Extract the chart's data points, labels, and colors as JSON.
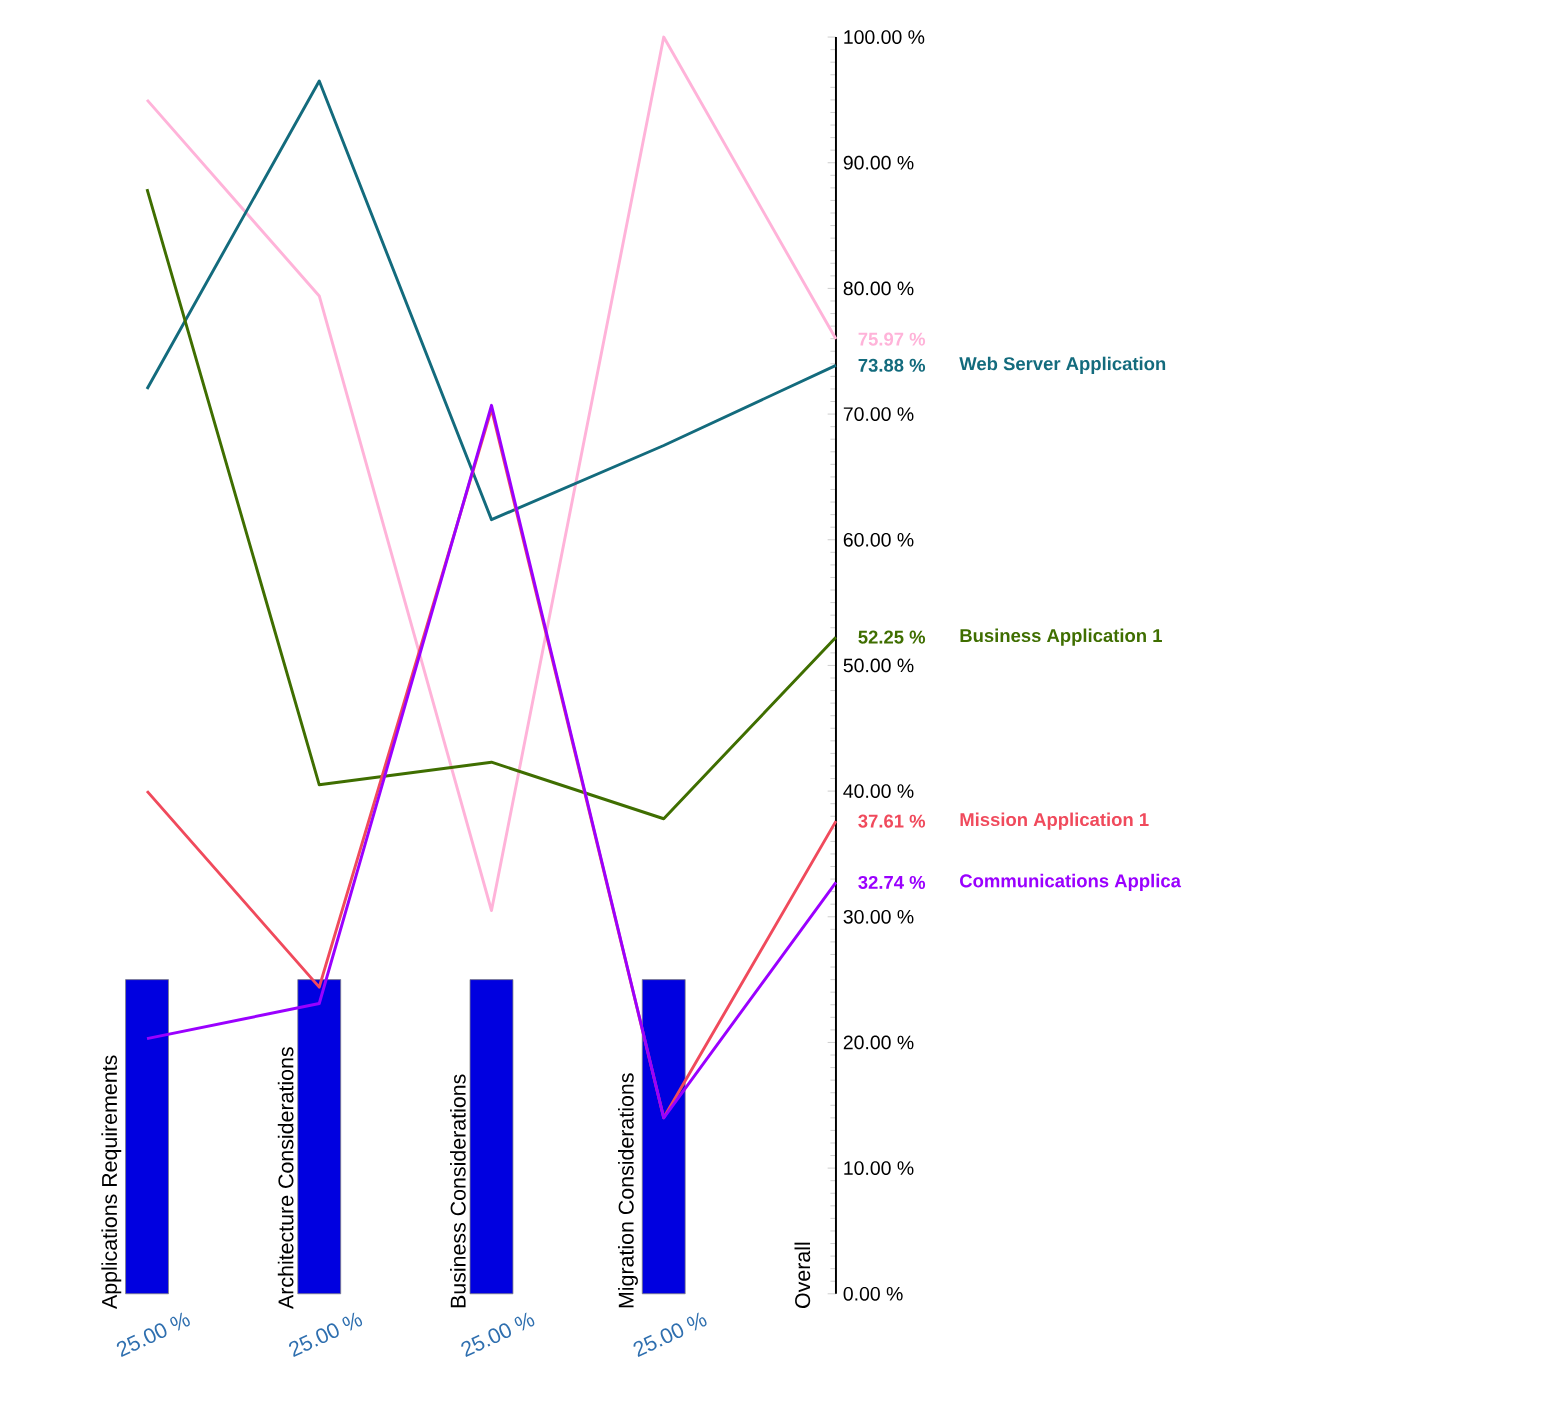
{
  "chart_data": {
    "type": "line",
    "categories": [
      "Applications Requirements",
      "Architecture Considerations",
      "Business Considerations",
      "Migration Considerations",
      "Overall"
    ],
    "series": [
      {
        "type": "bar",
        "color": "#0000e0",
        "values": [
          25,
          25,
          25,
          25,
          null
        ],
        "value_labels": [
          "25.00 %",
          "25.00 %",
          "25.00 %",
          "25.00 %",
          null
        ]
      },
      {
        "color": "#ffb3d9",
        "values": [
          95.0,
          79.4,
          30.5,
          100,
          75.97
        ],
        "value_labels": [
          null,
          null,
          null,
          null,
          "75.97 %"
        ]
      },
      {
        "name": "Web Server Application",
        "color": "#136b7d",
        "values": [
          72.0,
          96.5,
          61.6,
          67.5,
          73.88
        ],
        "value_labels": [
          null,
          null,
          null,
          null,
          "73.88 %"
        ]
      },
      {
        "name": "Business Application 1",
        "color": "#3f6e00",
        "values": [
          87.9,
          40.5,
          42.3,
          37.8,
          52.25
        ],
        "value_labels": [
          null,
          null,
          null,
          null,
          "52.25 %"
        ]
      },
      {
        "name": "Mission Application 1",
        "color": "#f04a5c",
        "values": [
          40.0,
          24.4,
          70.4,
          14.0,
          37.61
        ],
        "value_labels": [
          null,
          null,
          null,
          null,
          "37.61 %"
        ]
      },
      {
        "name": "Communications Applica",
        "color": "#9a00ff",
        "values": [
          20.3,
          23.1,
          70.7,
          14.0,
          32.74
        ],
        "value_labels": [
          null,
          null,
          null,
          null,
          "32.74 %"
        ]
      }
    ],
    "ylim": [
      0,
      100
    ],
    "yticks": [
      {
        "value": 0,
        "label": "0.00 %"
      },
      {
        "value": 10,
        "label": "10.00 %"
      },
      {
        "value": 20,
        "label": "20.00 %"
      },
      {
        "value": 30,
        "label": "30.00 %"
      },
      {
        "value": 40,
        "label": "40.00 %"
      },
      {
        "value": 50,
        "label": "50.00 %"
      },
      {
        "value": 60,
        "label": "60.00 %"
      },
      {
        "value": 70,
        "label": "70.00 %"
      },
      {
        "value": 80,
        "label": "80.00 %"
      },
      {
        "value": 90,
        "label": "90.00 %"
      },
      {
        "value": 100,
        "label": "100.00 %"
      }
    ]
  }
}
